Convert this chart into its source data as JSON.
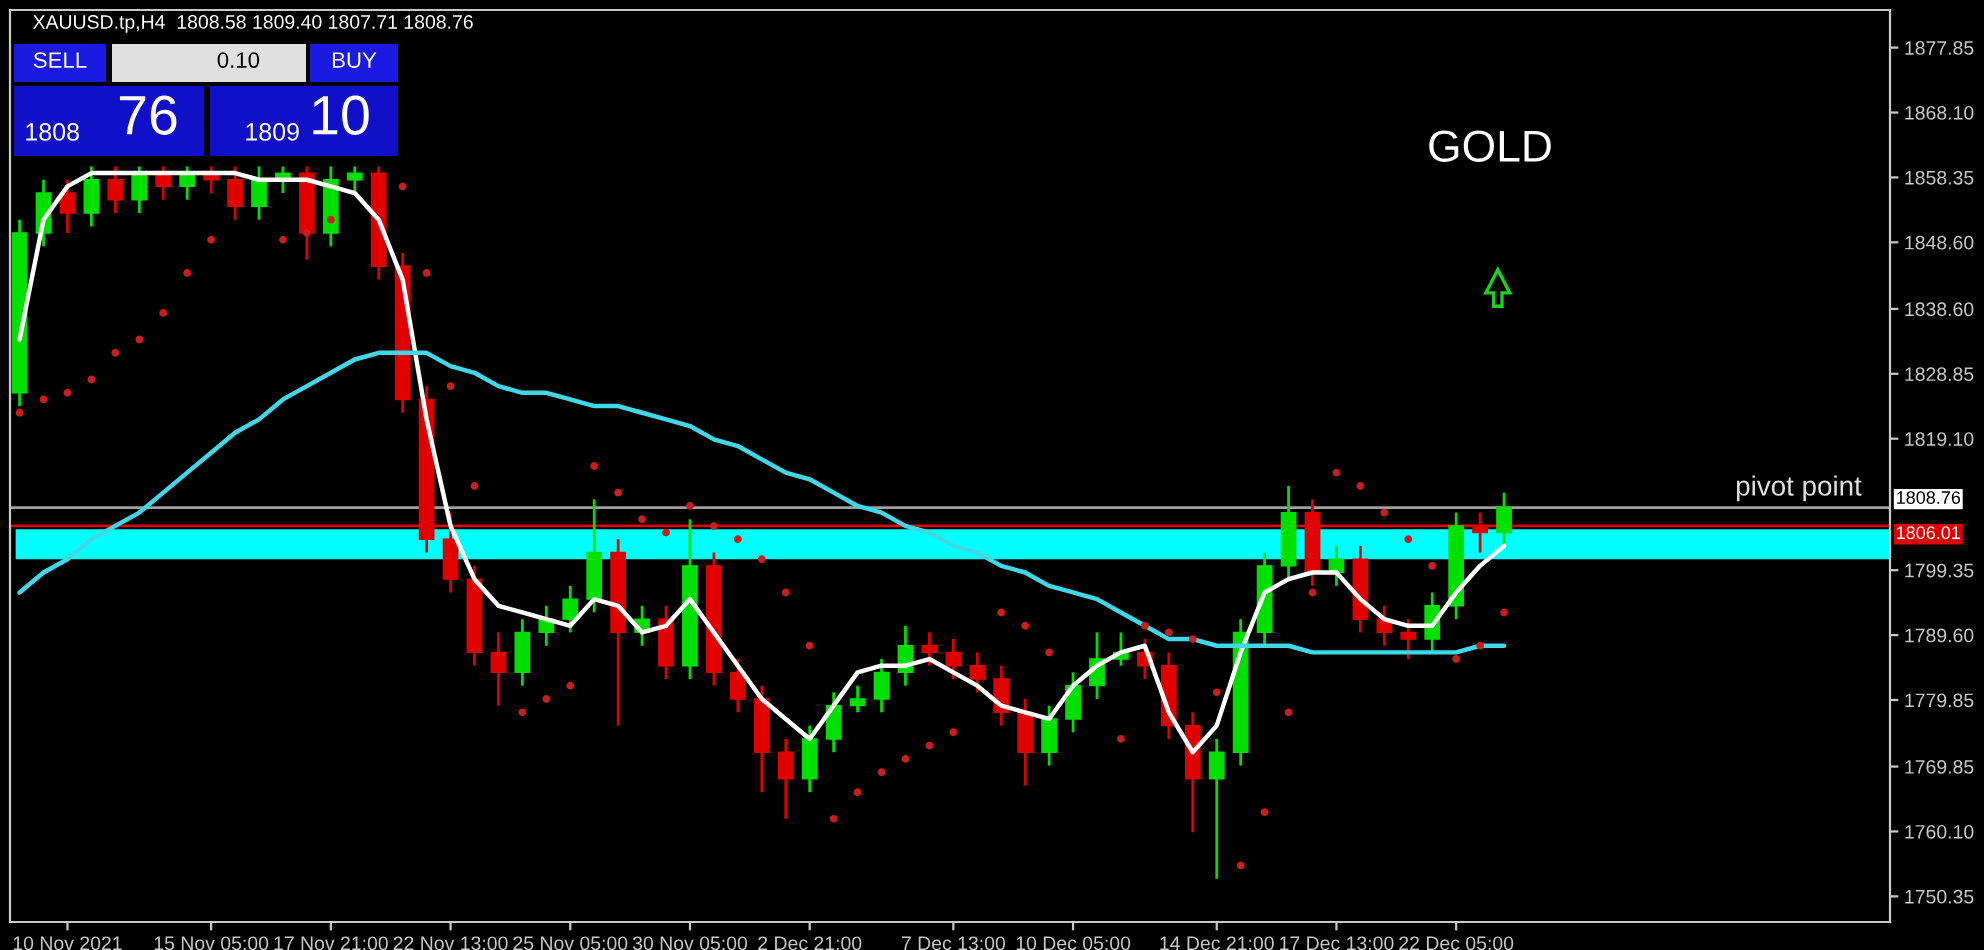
{
  "chart_data": {
    "type": "candlestick",
    "title": "XAUUSD.tp,H4  1808.58 1809.40 1807.71 1808.76",
    "categories": [
      null,
      null,
      "10 Nov 2021",
      null,
      null,
      null,
      null,
      null,
      "15 Nov 05:00",
      null,
      null,
      null,
      null,
      "17 Nov 21:00",
      null,
      null,
      null,
      null,
      "22 Nov 13:00",
      null,
      null,
      null,
      null,
      "25 Nov 05:00",
      null,
      null,
      null,
      null,
      "30 Nov 05:00",
      null,
      null,
      null,
      null,
      "2 Dec 21:00",
      null,
      null,
      null,
      null,
      null,
      "7 Dec 13:00",
      null,
      null,
      null,
      null,
      "10 Dec 05:00",
      null,
      null,
      null,
      null,
      null,
      "14 Dec 21:00",
      null,
      null,
      null,
      null,
      "17 Dec 13:00",
      null,
      null,
      null,
      null,
      "22 Dec 05:00",
      null,
      null
    ],
    "ohlc": [
      [
        1826,
        1852,
        1824,
        1850
      ],
      [
        1850,
        1858,
        1848,
        1856
      ],
      [
        1856,
        1858,
        1850,
        1853
      ],
      [
        1853,
        1860,
        1851,
        1858
      ],
      [
        1858,
        1860,
        1853,
        1855
      ],
      [
        1855,
        1860,
        1853,
        1859
      ],
      [
        1859,
        1860,
        1855,
        1857
      ],
      [
        1857,
        1860,
        1855,
        1859
      ],
      [
        1859,
        1860,
        1856,
        1858
      ],
      [
        1858,
        1860,
        1852,
        1854
      ],
      [
        1854,
        1860,
        1852,
        1858
      ],
      [
        1858,
        1860,
        1856,
        1859
      ],
      [
        1859,
        1860,
        1846,
        1850
      ],
      [
        1850,
        1860,
        1848,
        1858
      ],
      [
        1858,
        1860,
        1856,
        1859
      ],
      [
        1859,
        1860,
        1843,
        1845
      ],
      [
        1845,
        1847,
        1823,
        1825
      ],
      [
        1825,
        1827,
        1802,
        1804
      ],
      [
        1804,
        1808,
        1796,
        1798
      ],
      [
        1798,
        1800,
        1785,
        1787
      ],
      [
        1787,
        1790,
        1779,
        1784
      ],
      [
        1784,
        1792,
        1782,
        1790
      ],
      [
        1790,
        1794,
        1788,
        1792
      ],
      [
        1792,
        1797,
        1790,
        1795
      ],
      [
        1795,
        1810,
        1793,
        1802
      ],
      [
        1802,
        1804,
        1776,
        1790
      ],
      [
        1790,
        1794,
        1788,
        1792
      ],
      [
        1792,
        1794,
        1783,
        1785
      ],
      [
        1785,
        1807,
        1783,
        1800
      ],
      [
        1800,
        1802,
        1782,
        1784
      ],
      [
        1784,
        1786,
        1778,
        1780
      ],
      [
        1780,
        1782,
        1766,
        1772
      ],
      [
        1772,
        1774,
        1762,
        1768
      ],
      [
        1768,
        1776,
        1766,
        1774
      ],
      [
        1774,
        1781,
        1772,
        1779
      ],
      [
        1779,
        1782,
        1778,
        1780
      ],
      [
        1780,
        1786,
        1778,
        1784
      ],
      [
        1784,
        1791,
        1782,
        1788
      ],
      [
        1788,
        1790,
        1785,
        1787
      ],
      [
        1787,
        1789,
        1783,
        1785
      ],
      [
        1785,
        1787,
        1781,
        1783
      ],
      [
        1783,
        1785,
        1776,
        1778
      ],
      [
        1778,
        1780,
        1767,
        1772
      ],
      [
        1772,
        1779,
        1770,
        1777
      ],
      [
        1777,
        1784,
        1775,
        1782
      ],
      [
        1782,
        1790,
        1780,
        1786
      ],
      [
        1786,
        1790,
        1785,
        1787
      ],
      [
        1787,
        1789,
        1783,
        1785
      ],
      [
        1785,
        1787,
        1774,
        1776
      ],
      [
        1776,
        1778,
        1760,
        1768
      ],
      [
        1768,
        1774,
        1753,
        1772
      ],
      [
        1772,
        1792,
        1770,
        1790
      ],
      [
        1790,
        1802,
        1788,
        1800
      ],
      [
        1800,
        1812,
        1798,
        1808
      ],
      [
        1808,
        1810,
        1797,
        1799
      ],
      [
        1799,
        1803,
        1797,
        1801
      ],
      [
        1801,
        1803,
        1790,
        1792
      ],
      [
        1792,
        1794,
        1788,
        1790
      ],
      [
        1790,
        1792,
        1786,
        1789
      ],
      [
        1789,
        1796,
        1787,
        1794
      ],
      [
        1794,
        1808,
        1792,
        1806
      ],
      [
        1806,
        1808,
        1802,
        1805
      ],
      [
        1805,
        1811,
        1803,
        1808.76
      ]
    ],
    "series": [
      {
        "type": "line",
        "color": "#ffffff",
        "values": [
          1834,
          1852,
          1857,
          1859,
          1859,
          1859,
          1859,
          1859,
          1859,
          1859,
          1858,
          1858,
          1858,
          1857,
          1856,
          1852,
          1843,
          1822,
          1806,
          1798,
          1794,
          1793,
          1792,
          1791,
          1795,
          1794,
          1790,
          1791,
          1795,
          1790,
          1785,
          1780,
          1777,
          1774,
          1779,
          1784,
          1785,
          1785,
          1786,
          1784,
          1782,
          1779,
          1778,
          1777,
          1782,
          1785,
          1787,
          1788,
          1778,
          1772,
          1776,
          1787,
          1796,
          1798,
          1799,
          1799,
          1795,
          1792,
          1791,
          1791,
          1796,
          1800,
          1803
        ]
      },
      {
        "type": "line",
        "color": "#40d8e8",
        "values": [
          1796,
          1799,
          1801,
          1804,
          1806,
          1808,
          1811,
          1814,
          1817,
          1820,
          1822,
          1825,
          1827,
          1829,
          1831,
          1832,
          1832,
          1832,
          1830,
          1829,
          1827,
          1826,
          1826,
          1825,
          1824,
          1824,
          1823,
          1822,
          1821,
          1819,
          1818,
          1816,
          1814,
          1813,
          1811,
          1809,
          1808,
          1806,
          1805,
          1803,
          1802,
          1800,
          1799,
          1797,
          1796,
          1795,
          1793,
          1791,
          1789,
          1789,
          1788,
          1788,
          1788,
          1788,
          1787,
          1787,
          1787,
          1787,
          1787,
          1787,
          1787,
          1788,
          1788
        ]
      },
      {
        "type": "scatter",
        "color": "#c81e1e",
        "marker": "circle",
        "values": [
          1823,
          1825,
          1826,
          1828,
          1832,
          1834,
          1838,
          1844,
          1849,
          null,
          null,
          1849,
          1850,
          1852,
          null,
          null,
          1857,
          1844,
          1827,
          1812,
          null,
          1778,
          1780,
          1782,
          1815,
          1811,
          1807,
          1805,
          1809,
          1806,
          1804,
          1801,
          1796,
          1788,
          1762,
          1766,
          1769,
          1771,
          1773,
          1775,
          null,
          1793,
          1791,
          1787,
          null,
          null,
          1774,
          1791,
          1790,
          1789,
          1781,
          1755,
          1763,
          1778,
          1796,
          1814,
          1812,
          1808,
          1804,
          1800,
          1786,
          1788,
          1793
        ]
      }
    ],
    "ylim": [
      1746.5,
      1883.5
    ],
    "yticks": [
      {
        "value": 1750.35,
        "label": "1750.35"
      },
      {
        "value": 1760.1,
        "label": "1760.10"
      },
      {
        "value": 1769.85,
        "label": "1769.85"
      },
      {
        "value": 1779.85,
        "label": "1779.85"
      },
      {
        "value": 1789.6,
        "label": "1789.60"
      },
      {
        "value": 1799.35,
        "label": "1799.35"
      },
      {
        "value": 1819.1,
        "label": "1819.10"
      },
      {
        "value": 1828.85,
        "label": "1828.85"
      },
      {
        "value": 1838.6,
        "label": "1838.60"
      },
      {
        "value": 1848.6,
        "label": "1848.60"
      },
      {
        "value": 1858.35,
        "label": "1858.35"
      },
      {
        "value": 1868.1,
        "label": "1868.10"
      },
      {
        "value": 1877.85,
        "label": "1877.85"
      }
    ],
    "ref_lines": [
      {
        "axis": "y",
        "value": 1808.76,
        "label": "1808.76",
        "color": "#a0a0a0"
      },
      {
        "axis": "y",
        "value": 1806.01,
        "label": "1806.01",
        "color": "#e00000"
      }
    ],
    "bands": [
      {
        "axis": "y",
        "from": 1801,
        "to": 1805.5,
        "label": "pivot point",
        "color": "#00ffff"
      }
    ],
    "annotations": [
      "GOLD",
      "SELL",
      "0.10",
      "BUY",
      "1808",
      "76",
      "1809",
      "10"
    ],
    "grid": false,
    "legend": false
  }
}
